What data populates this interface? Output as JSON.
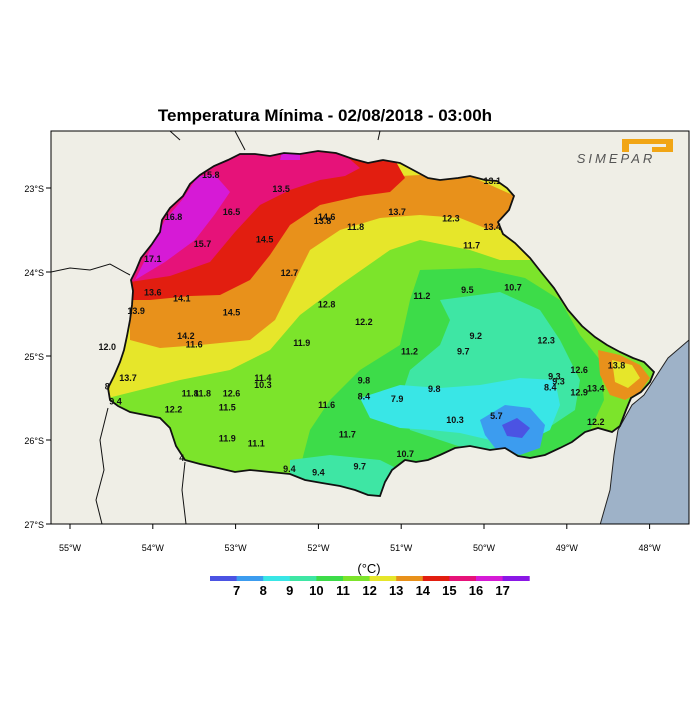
{
  "title": "Temperatura Mínima - 02/08/2018 - 03:00h",
  "logo_text": "SIMEPAR",
  "axes": {
    "lat_labels": [
      "23°S",
      "24°S",
      "25°S",
      "26°S",
      "27°S"
    ],
    "lon_labels": [
      "55°W",
      "54°W",
      "53°W",
      "52°W",
      "51°W",
      "50°W",
      "49°W",
      "48°W"
    ]
  },
  "legend": {
    "unit": "(°C)",
    "tick_labels": [
      "7",
      "8",
      "9",
      "10",
      "11",
      "12",
      "13",
      "14",
      "15",
      "16",
      "17"
    ],
    "colors": [
      "#4b53e3",
      "#3c9cef",
      "#39e6e6",
      "#3ee6a4",
      "#3ddc49",
      "#7ce42b",
      "#e6e62a",
      "#e8911b",
      "#e21e10",
      "#e61279",
      "#d61ad6",
      "#8a17e6"
    ]
  },
  "colors": {
    "ocean": "#9eb2c8",
    "land": "#efeee6",
    "border": "#111111"
  },
  "station_values": [
    {
      "v": "15.8",
      "lon": -53.3,
      "lat": -22.88
    },
    {
      "v": "13.5",
      "lon": -52.45,
      "lat": -23.05
    },
    {
      "v": "16.5",
      "lon": -53.05,
      "lat": -23.32
    },
    {
      "v": "16.8",
      "lon": -53.75,
      "lat": -23.38
    },
    {
      "v": "14.6",
      "lon": -51.9,
      "lat": -23.38
    },
    {
      "v": "13.8",
      "lon": -51.95,
      "lat": -23.43
    },
    {
      "v": "13.7",
      "lon": -51.05,
      "lat": -23.32
    },
    {
      "v": "12.3",
      "lon": -50.4,
      "lat": -23.4
    },
    {
      "v": "13.1",
      "lon": -49.9,
      "lat": -22.95
    },
    {
      "v": "11.8",
      "lon": -51.55,
      "lat": -23.5
    },
    {
      "v": "13.4",
      "lon": -49.9,
      "lat": -23.5
    },
    {
      "v": "14.5",
      "lon": -52.65,
      "lat": -23.65
    },
    {
      "v": "15.7",
      "lon": -53.4,
      "lat": -23.7
    },
    {
      "v": "17.1",
      "lon": -54.0,
      "lat": -23.88
    },
    {
      "v": "11.7",
      "lon": -50.15,
      "lat": -23.72
    },
    {
      "v": "12.7",
      "lon": -52.35,
      "lat": -24.05
    },
    {
      "v": "13.6",
      "lon": -54.0,
      "lat": -24.28
    },
    {
      "v": "14.1",
      "lon": -53.65,
      "lat": -24.35
    },
    {
      "v": "10.7",
      "lon": -49.65,
      "lat": -24.22
    },
    {
      "v": "9.5",
      "lon": -50.2,
      "lat": -24.25
    },
    {
      "v": "11.2",
      "lon": -50.75,
      "lat": -24.32
    },
    {
      "v": "12.8",
      "lon": -51.9,
      "lat": -24.42
    },
    {
      "v": "13.9",
      "lon": -54.2,
      "lat": -24.5
    },
    {
      "v": "14.5",
      "lon": -53.05,
      "lat": -24.52
    },
    {
      "v": "12.2",
      "lon": -51.45,
      "lat": -24.63
    },
    {
      "v": "14.2",
      "lon": -53.6,
      "lat": -24.8
    },
    {
      "v": "9.2",
      "lon": -50.1,
      "lat": -24.8
    },
    {
      "v": "12.3",
      "lon": -49.25,
      "lat": -24.85
    },
    {
      "v": "11.6",
      "lon": -53.5,
      "lat": -24.9
    },
    {
      "v": "12.0",
      "lon": -54.55,
      "lat": -24.93
    },
    {
      "v": "11.9",
      "lon": -52.2,
      "lat": -24.88
    },
    {
      "v": "9.7",
      "lon": -50.25,
      "lat": -24.98
    },
    {
      "v": "11.2",
      "lon": -50.9,
      "lat": -24.98
    },
    {
      "v": "13.8",
      "lon": -48.4,
      "lat": -25.15
    },
    {
      "v": "13.7",
      "lon": -54.3,
      "lat": -25.3
    },
    {
      "v": "11.4",
      "lon": -52.67,
      "lat": -25.3
    },
    {
      "v": "10.3",
      "lon": -52.67,
      "lat": -25.38
    },
    {
      "v": "9.8",
      "lon": -51.45,
      "lat": -25.33
    },
    {
      "v": "9.3",
      "lon": -49.15,
      "lat": -25.28
    },
    {
      "v": "9.3",
      "lon": -49.1,
      "lat": -25.34
    },
    {
      "v": "12.6",
      "lon": -48.85,
      "lat": -25.2
    },
    {
      "v": "13.4",
      "lon": -48.65,
      "lat": -25.42
    },
    {
      "v": "12.9",
      "lon": -48.85,
      "lat": -25.47
    },
    {
      "v": "8.4",
      "lon": -49.2,
      "lat": -25.41
    },
    {
      "v": "8",
      "lon": -54.55,
      "lat": -25.4
    },
    {
      "v": "9.8",
      "lon": -50.6,
      "lat": -25.43
    },
    {
      "v": "11.8",
      "lon": -53.55,
      "lat": -25.48
    },
    {
      "v": "11.8",
      "lon": -53.4,
      "lat": -25.48
    },
    {
      "v": "12.6",
      "lon": -53.05,
      "lat": -25.48
    },
    {
      "v": "8.4",
      "lon": -51.45,
      "lat": -25.52
    },
    {
      "v": "7.9",
      "lon": -51.05,
      "lat": -25.55
    },
    {
      "v": "9.4",
      "lon": -54.45,
      "lat": -25.58
    },
    {
      "v": "11.6",
      "lon": -51.9,
      "lat": -25.62
    },
    {
      "v": "12.2",
      "lon": -53.75,
      "lat": -25.67
    },
    {
      "v": "11.5",
      "lon": -53.1,
      "lat": -25.65
    },
    {
      "v": "5.7",
      "lon": -49.85,
      "lat": -25.75
    },
    {
      "v": "10.3",
      "lon": -50.35,
      "lat": -25.8
    },
    {
      "v": "12.2",
      "lon": -48.65,
      "lat": -25.82
    },
    {
      "v": "11.7",
      "lon": -51.65,
      "lat": -25.97
    },
    {
      "v": "11.9",
      "lon": -53.1,
      "lat": -26.02
    },
    {
      "v": "11.1",
      "lon": -52.75,
      "lat": -26.08
    },
    {
      "v": "10.7",
      "lon": -50.95,
      "lat": -26.2
    },
    {
      "v": "4",
      "lon": -53.65,
      "lat": -26.25
    },
    {
      "v": "9.4",
      "lon": -52.35,
      "lat": -26.38
    },
    {
      "v": "9.7",
      "lon": -51.5,
      "lat": -26.35
    },
    {
      "v": "9.4",
      "lon": -52.0,
      "lat": -26.42
    }
  ]
}
